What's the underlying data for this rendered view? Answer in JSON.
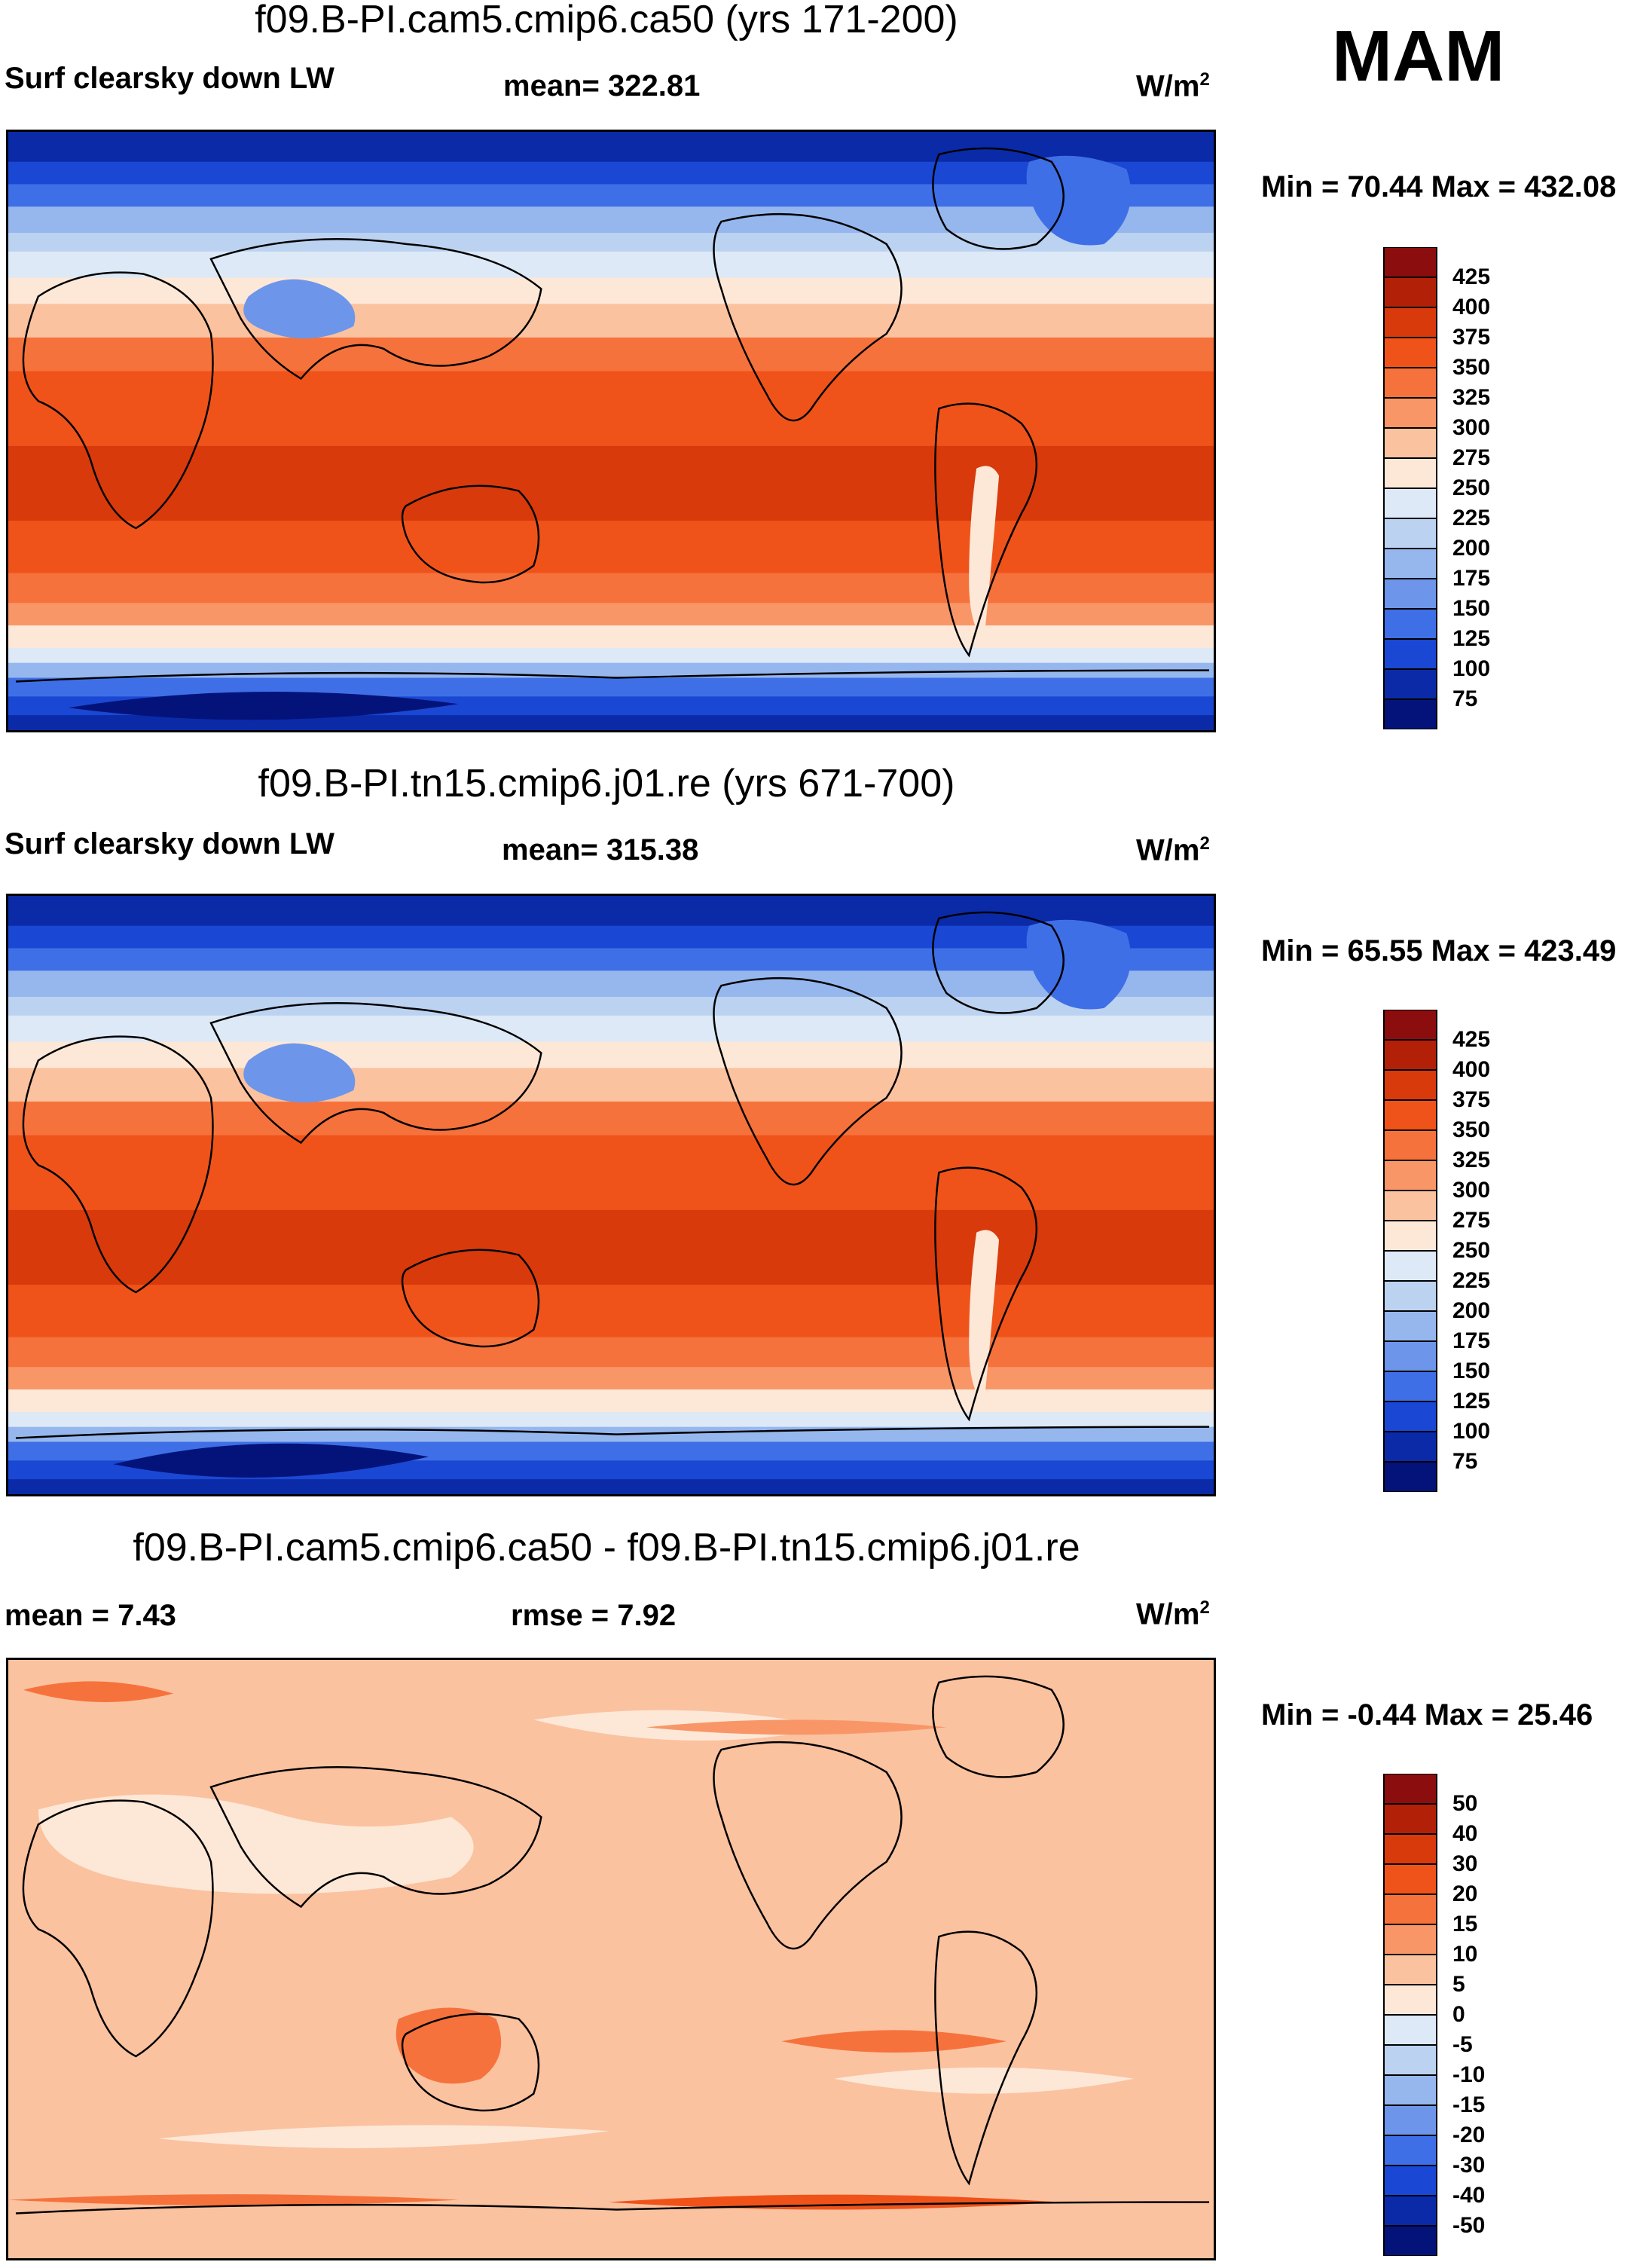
{
  "season": "MAM",
  "panels": [
    {
      "title": "f09.B-PI.cam5.cmip6.ca50 (yrs 171-200)",
      "left_label": "Surf clearsky down LW",
      "center_label": "mean= 322.81",
      "units": "W/m",
      "units_sup": "2",
      "minmax": "Min =  70.44 Max = 432.08"
    },
    {
      "title": "f09.B-PI.tn15.cmip6.j01.re (yrs 671-700)",
      "left_label": "Surf clearsky down LW",
      "center_label": "mean= 315.38",
      "units": "W/m",
      "units_sup": "2",
      "minmax": "Min =  65.55 Max = 423.49"
    },
    {
      "title": "f09.B-PI.cam5.cmip6.ca50 - f09.B-PI.tn15.cmip6.j01.re",
      "left_label": "mean =   7.43",
      "center_label": "rmse =   7.92",
      "units": "W/m",
      "units_sup": "2",
      "minmax": "Min =  -0.44 Max =  25.46"
    }
  ],
  "chart_data": [
    {
      "type": "heatmap",
      "title": "f09.B-PI.cam5.cmip6.ca50 (yrs 171-200)",
      "variable": "Surf clearsky down LW",
      "units": "W/m2",
      "mean": 322.81,
      "min": 70.44,
      "max": 432.08,
      "colorbar_levels": [
        425,
        400,
        375,
        350,
        325,
        300,
        275,
        250,
        225,
        200,
        175,
        150,
        125,
        100,
        75
      ],
      "colorbar_colors": [
        "#8c0d0d",
        "#b32008",
        "#d83a0c",
        "#f0531a",
        "#f6723c",
        "#f99668",
        "#fbc2a0",
        "#fde8d8",
        "#dde9f6",
        "#bcd2f1",
        "#96b7ee",
        "#6d96ea",
        "#3f6fe6",
        "#1a48d4",
        "#0b2aa8",
        "#04137a"
      ]
    },
    {
      "type": "heatmap",
      "title": "f09.B-PI.tn15.cmip6.j01.re (yrs 671-700)",
      "variable": "Surf clearsky down LW",
      "units": "W/m2",
      "mean": 315.38,
      "min": 65.55,
      "max": 423.49,
      "colorbar_levels": [
        425,
        400,
        375,
        350,
        325,
        300,
        275,
        250,
        225,
        200,
        175,
        150,
        125,
        100,
        75
      ],
      "colorbar_colors": [
        "#8c0d0d",
        "#b32008",
        "#d83a0c",
        "#f0531a",
        "#f6723c",
        "#f99668",
        "#fbc2a0",
        "#fde8d8",
        "#dde9f6",
        "#bcd2f1",
        "#96b7ee",
        "#6d96ea",
        "#3f6fe6",
        "#1a48d4",
        "#0b2aa8",
        "#04137a"
      ]
    },
    {
      "type": "heatmap",
      "title": "f09.B-PI.cam5.cmip6.ca50 - f09.B-PI.tn15.cmip6.j01.re",
      "variable": "difference",
      "units": "W/m2",
      "mean": 7.43,
      "rmse": 7.92,
      "min": -0.44,
      "max": 25.46,
      "colorbar_levels": [
        50,
        40,
        30,
        20,
        15,
        10,
        5,
        0,
        -5,
        -10,
        -15,
        -20,
        -30,
        -40,
        -50
      ],
      "colorbar_colors": [
        "#8c0d0d",
        "#b32008",
        "#d83a0c",
        "#f0531a",
        "#f6723c",
        "#f99668",
        "#fbc2a0",
        "#fde8d8",
        "#dde9f6",
        "#bcd2f1",
        "#96b7ee",
        "#6d96ea",
        "#3f6fe6",
        "#1a48d4",
        "#0b2aa8",
        "#04137a"
      ]
    }
  ]
}
